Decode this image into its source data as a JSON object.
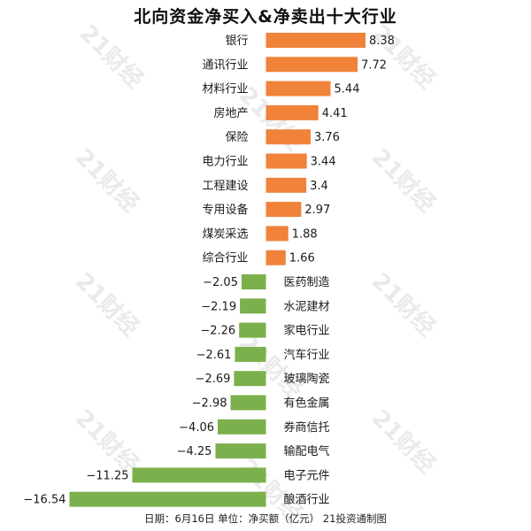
{
  "title": "北向资金净买入&净卖出十大行业",
  "footer": "日期：6月16日 单位：净买额（亿元） 21投资通制图",
  "watermark_text": "21财经",
  "colors": {
    "positive": "#f0823a",
    "negative": "#7cb04c"
  },
  "chart_data": {
    "type": "bar",
    "orientation": "horizontal",
    "title": "北向资金净买入&净卖出十大行业",
    "categories": [
      "银行",
      "通讯行业",
      "材料行业",
      "房地产",
      "保险",
      "电力行业",
      "工程建设",
      "专用设备",
      "煤炭采选",
      "综合行业",
      "医药制造",
      "水泥建材",
      "家电行业",
      "汽车行业",
      "玻璃陶瓷",
      "有色金属",
      "券商信托",
      "输配电气",
      "电子元件",
      "酿酒行业"
    ],
    "values": [
      8.38,
      7.72,
      5.44,
      4.41,
      3.76,
      3.44,
      3.4,
      2.97,
      1.88,
      1.66,
      -2.05,
      -2.19,
      -2.26,
      -2.61,
      -2.69,
      -2.98,
      -4.06,
      -4.25,
      -11.25,
      -16.54
    ],
    "value_labels": [
      "8.38",
      "7.72",
      "5.44",
      "4.41",
      "3.76",
      "3.44",
      "3.4",
      "2.97",
      "1.88",
      "1.66",
      "−2.05",
      "−2.19",
      "−2.26",
      "−2.61",
      "−2.69",
      "−2.98",
      "−4.06",
      "−4.25",
      "−11.25",
      "−16.54"
    ],
    "xlim": [
      -16.54,
      8.38
    ],
    "grid": false,
    "legend": "none"
  }
}
